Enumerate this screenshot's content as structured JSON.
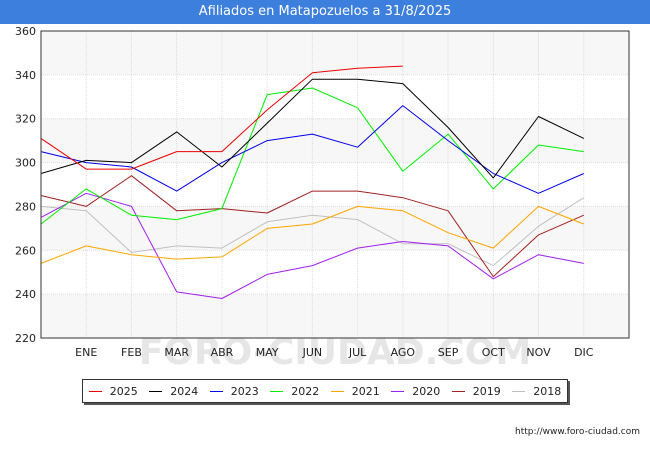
{
  "header": {
    "title": "Afiliados en Matapozuelos a 31/8/2025"
  },
  "footer": {
    "source": "http://www.foro-ciudad.com"
  },
  "chart_data": {
    "type": "line",
    "title": "Afiliados en Matapozuelos a 31/8/2025",
    "xlabel": "",
    "ylabel": "",
    "categories": [
      "",
      "ENE",
      "FEB",
      "MAR",
      "ABR",
      "MAY",
      "JUN",
      "JUL",
      "AGO",
      "SEP",
      "OCT",
      "NOV",
      "DIC"
    ],
    "ylim": [
      220,
      360
    ],
    "yticks": [
      220,
      240,
      260,
      280,
      300,
      320,
      340,
      360
    ],
    "grid": true,
    "legend_position": "bottom",
    "watermark": "FORO-CIUDAD.COM",
    "series": [
      {
        "name": "2025",
        "color": "#ee0000",
        "values": [
          311,
          297,
          297,
          305,
          305,
          324,
          341,
          343,
          344,
          null,
          null,
          null,
          null
        ]
      },
      {
        "name": "2024",
        "color": "#000000",
        "values": [
          295,
          301,
          300,
          314,
          298,
          318,
          338,
          338,
          336,
          316,
          293,
          321,
          311
        ]
      },
      {
        "name": "2023",
        "color": "#0000ee",
        "values": [
          305,
          300,
          298,
          287,
          300,
          310,
          313,
          307,
          326,
          310,
          295,
          286,
          295
        ]
      },
      {
        "name": "2022",
        "color": "#00ee00",
        "values": [
          272,
          288,
          276,
          274,
          279,
          331,
          334,
          325,
          296,
          313,
          288,
          308,
          305
        ]
      },
      {
        "name": "2021",
        "color": "#ffa500",
        "values": [
          254,
          262,
          258,
          256,
          257,
          270,
          272,
          280,
          278,
          268,
          261,
          280,
          272
        ]
      },
      {
        "name": "2020",
        "color": "#a020f0",
        "values": [
          275,
          286,
          280,
          241,
          238,
          249,
          253,
          261,
          264,
          262,
          247,
          258,
          254
        ]
      },
      {
        "name": "2019",
        "color": "#a02020",
        "values": [
          285,
          280,
          294,
          278,
          279,
          277,
          287,
          287,
          284,
          278,
          248,
          267,
          276
        ]
      },
      {
        "name": "2018",
        "color": "#c0c0c0",
        "values": [
          280,
          278,
          259,
          262,
          261,
          273,
          276,
          274,
          263,
          263,
          253,
          271,
          284
        ]
      }
    ]
  }
}
